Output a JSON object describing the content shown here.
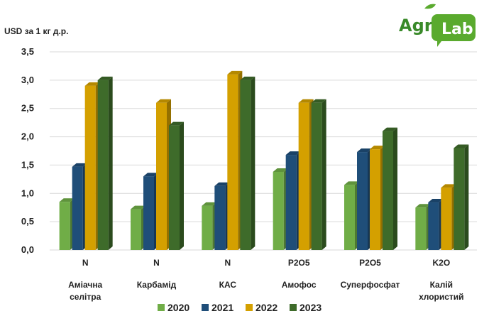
{
  "chart_data": {
    "type": "bar",
    "ylabel": "USD за 1 кг д.р.",
    "ylim": [
      0,
      3.5
    ],
    "yticks": [
      "0,0",
      "0,5",
      "1,0",
      "1,5",
      "2,0",
      "2,5",
      "3,0",
      "3,5"
    ],
    "categories": [
      {
        "nutrient": "N",
        "name": [
          "Аміачна",
          "селітра"
        ]
      },
      {
        "nutrient": "N",
        "name": [
          "Карбамід"
        ]
      },
      {
        "nutrient": "N",
        "name": [
          "КАС"
        ]
      },
      {
        "nutrient": "P2O5",
        "name": [
          "Амофос"
        ]
      },
      {
        "nutrient": "P2O5",
        "name": [
          "Суперфосфат"
        ]
      },
      {
        "nutrient": "K2O",
        "name": [
          "Калій",
          "хлористий"
        ]
      }
    ],
    "series": [
      {
        "name": "2020",
        "color": "#70ad47",
        "values": [
          0.85,
          0.72,
          0.78,
          1.38,
          1.15,
          0.75
        ]
      },
      {
        "name": "2021",
        "color": "#1f4e79",
        "values": [
          1.47,
          1.3,
          1.13,
          1.68,
          1.73,
          0.84
        ]
      },
      {
        "name": "2022",
        "color": "#d4a000",
        "values": [
          2.9,
          2.6,
          3.1,
          2.6,
          1.78,
          1.1
        ]
      },
      {
        "name": "2023",
        "color": "#3e6b2a",
        "values": [
          3.0,
          2.2,
          3.0,
          2.6,
          2.1,
          1.8
        ]
      }
    ],
    "legend_position": "bottom",
    "grid": true
  },
  "logo": {
    "part1": "Agri",
    "part2": "Lab"
  }
}
